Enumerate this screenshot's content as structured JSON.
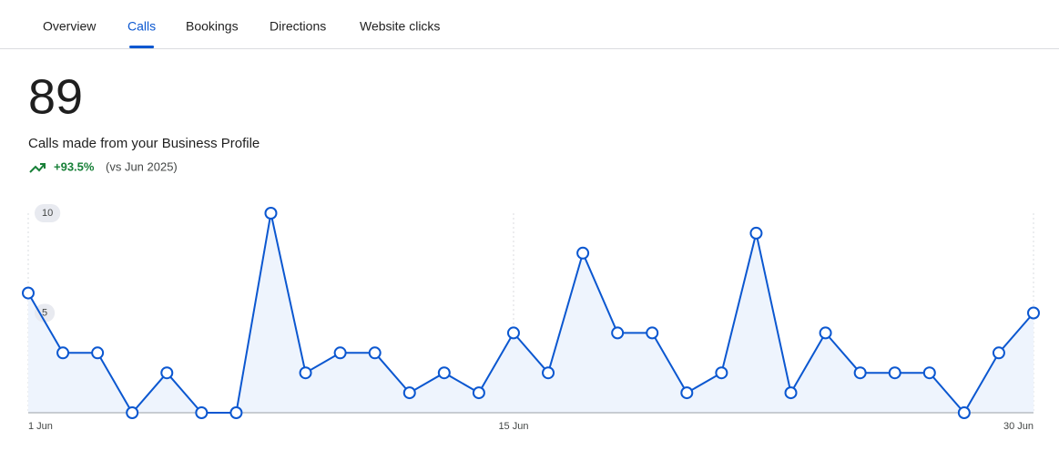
{
  "tabs": [
    "Overview",
    "Calls",
    "Bookings",
    "Directions",
    "Website clicks"
  ],
  "active_tab": 1,
  "summary": {
    "total": 89,
    "label": "Calls made from your Business Profile",
    "change": "+93.5%",
    "comparison": "(vs Jun 2025)"
  },
  "chart_data": {
    "type": "area",
    "categories": [
      "1 Jun",
      null,
      null,
      null,
      null,
      null,
      null,
      null,
      null,
      null,
      null,
      null,
      null,
      null,
      "15 Jun",
      null,
      null,
      null,
      null,
      null,
      null,
      null,
      null,
      null,
      null,
      null,
      null,
      null,
      null,
      "30 Jun"
    ],
    "values": [
      6,
      3,
      3,
      0,
      2,
      0,
      0,
      10,
      2,
      3,
      3,
      1,
      2,
      1,
      4,
      2,
      8,
      4,
      4,
      1,
      2,
      9,
      1,
      4,
      2,
      2,
      2,
      0,
      3,
      5
    ],
    "color": "#0b57d0",
    "ylim": [
      0,
      10
    ],
    "yticks": [
      5,
      10
    ]
  }
}
